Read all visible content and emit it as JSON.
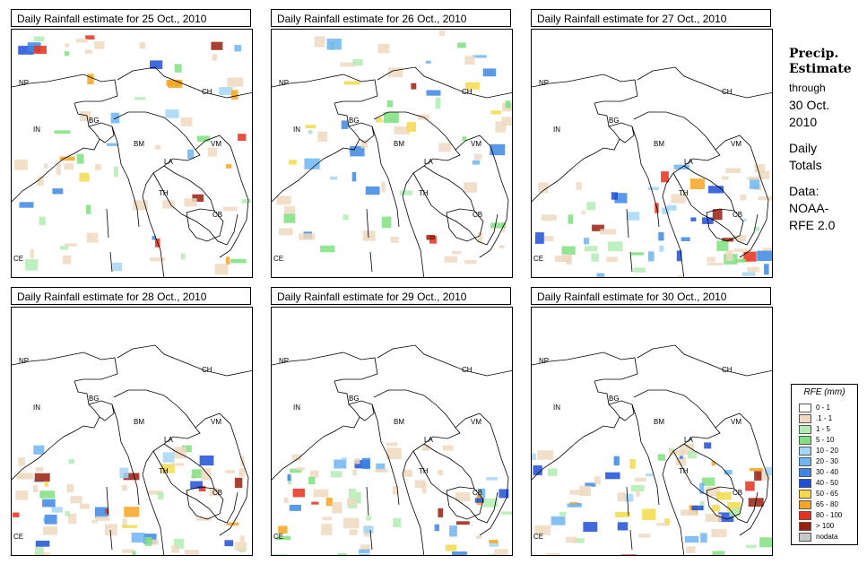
{
  "panels": [
    {
      "title": "Daily Rainfall estimate for  25 Oct., 2010"
    },
    {
      "title": "Daily Rainfall estimate for  26 Oct., 2010"
    },
    {
      "title": "Daily Rainfall estimate for  27 Oct., 2010"
    },
    {
      "title": "Daily Rainfall estimate for  28 Oct., 2010"
    },
    {
      "title": "Daily Rainfall estimate for  29 Oct., 2010"
    },
    {
      "title": "Daily Rainfall estimate for  30 Oct., 2010"
    }
  ],
  "country_labels": {
    "np": "NP",
    "ch": "CH",
    "in": "IN",
    "bg": "BG",
    "bm": "BM",
    "vm": "VM",
    "la": "LA",
    "th": "TH",
    "cb": "CB",
    "ce": "CE"
  },
  "side": {
    "heading_1": "Precip.",
    "heading_2": "Estimate",
    "through": "through",
    "date_1": "30 Oct.",
    "date_2": "2010",
    "daily_1": "Daily",
    "daily_2": "Totals",
    "data_1": "Data:",
    "data_2": "NOAA-",
    "data_3": "RFE 2.0"
  },
  "legend": {
    "title": "RFE (mm)",
    "items": [
      {
        "label": "0 - 1",
        "color": "#ffffff"
      },
      {
        "label": ".1 - 1",
        "color": "#eed9c0"
      },
      {
        "label": "1 - 5",
        "color": "#b3ecb3"
      },
      {
        "label": "5 - 10",
        "color": "#7fe07f"
      },
      {
        "label": "10 - 20",
        "color": "#a6d6f5"
      },
      {
        "label": "20 - 30",
        "color": "#6fb5f2"
      },
      {
        "label": "30 - 40",
        "color": "#3d87e3"
      },
      {
        "label": "40 - 50",
        "color": "#1f4fd6"
      },
      {
        "label": "50 - 65",
        "color": "#f5d94a"
      },
      {
        "label": "65 - 80",
        "color": "#f5a623"
      },
      {
        "label": "80 - 100",
        "color": "#e6301c"
      },
      {
        "label": "> 100",
        "color": "#9a1f10"
      },
      {
        "label": "nodata",
        "color": "#c8c8c8"
      }
    ]
  }
}
